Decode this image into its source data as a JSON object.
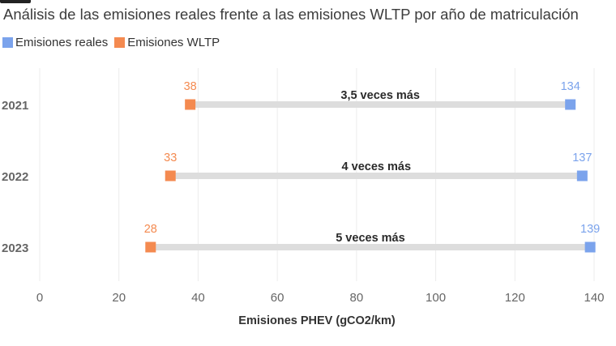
{
  "subtitle": "Análisis de las emisiones reales frente a las emisiones WLTP por año de matriculación",
  "colors": {
    "reales": "#7ba3ec",
    "wltp": "#f48a50",
    "connector": "#dddddd",
    "grid": "#ececec"
  },
  "chart_data": {
    "type": "dumbbell",
    "title": "",
    "subtitle": "Análisis de las emisiones reales frente a las emisiones WLTP por año de matriculación",
    "xlabel": "Emisiones PHEV (gCO2/km)",
    "ylabel": "",
    "xlim": [
      0,
      140
    ],
    "xticks": [
      0,
      20,
      40,
      60,
      80,
      100,
      120,
      140
    ],
    "legend_position": "top-left",
    "grid": "vertical",
    "categories": [
      "2021",
      "2022",
      "2023"
    ],
    "series": [
      {
        "name": "Emisiones reales",
        "values": [
          134,
          137,
          139
        ]
      },
      {
        "name": "Emisiones WLTP",
        "values": [
          38,
          33,
          28
        ]
      }
    ],
    "annotations": [
      "3,5 veces más",
      "4 veces más",
      "5 veces más"
    ]
  }
}
